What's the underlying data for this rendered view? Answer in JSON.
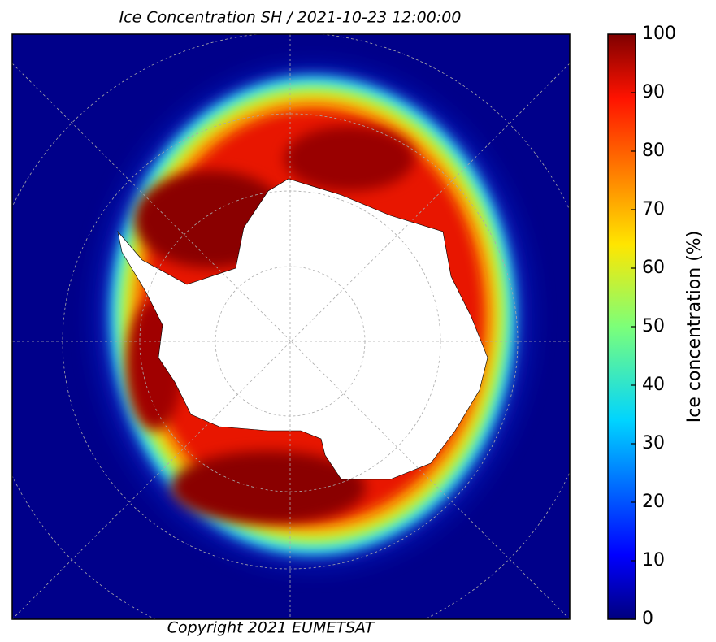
{
  "title": "Ice Concentration SH / 2021-10-23 12:00:00",
  "copyright": "Copyright 2021 EUMETSAT",
  "colorbar": {
    "label": "Ice concentration (%)",
    "lim": [
      0,
      100
    ],
    "ticks": [
      0,
      10,
      20,
      30,
      40,
      50,
      60,
      70,
      80,
      90,
      100
    ]
  }
}
